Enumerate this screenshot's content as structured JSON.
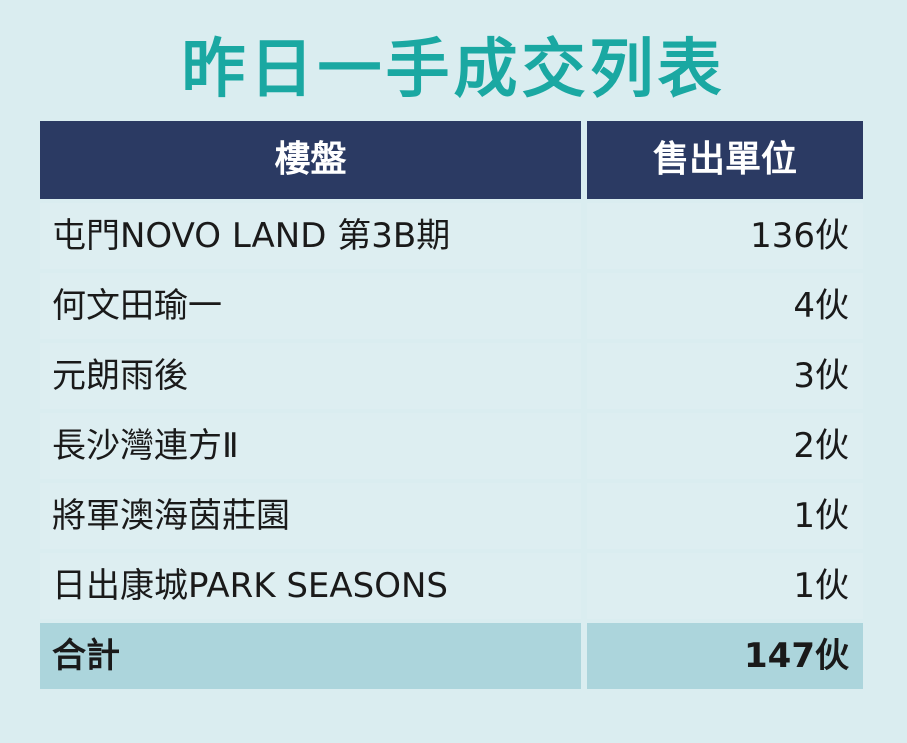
{
  "title": "昨日一手成交列表",
  "table": {
    "headers": [
      "樓盤",
      "售出單位"
    ],
    "rows": [
      {
        "name": "屯門NOVO LAND 第3B期",
        "units": "136伙"
      },
      {
        "name": "何文田瑜一",
        "units": "4伙"
      },
      {
        "name": "元朗雨後",
        "units": "3伙"
      },
      {
        "name": "長沙灣連方Ⅱ",
        "units": "2伙"
      },
      {
        "name": "將軍澳海茵莊園",
        "units": "1伙"
      },
      {
        "name": "日出康城PARK SEASONS",
        "units": "1伙"
      }
    ],
    "total": {
      "label": "合計",
      "units": "147伙"
    }
  },
  "colors": {
    "background": "#daedf0",
    "title": "#1aa8a2",
    "header_bg": "#2b3a63",
    "header_text": "#ffffff",
    "row_bg": "#ddeef1",
    "total_bg": "#acd5dc"
  }
}
